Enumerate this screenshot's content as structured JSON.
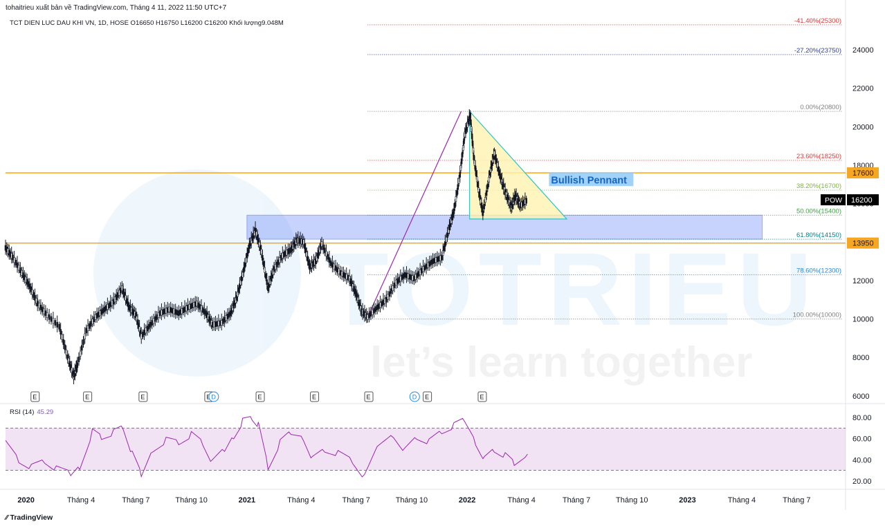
{
  "publisher_line": "tohaitrieu xuất bản về TradingView.com, Tháng 4 11, 2022 11:50 UTC+7",
  "symbol_line": "TCT DIEN LUC DAU KHI VN, 1D, HOSE  O16650  H16750  L16200  C16200  Khối lượng9.048M",
  "brand": "TradingView",
  "watermark": {
    "big": "TOTRIEU",
    "tagline": "let’s learn together"
  },
  "annotation": "Bullish Pennant",
  "rsi": {
    "label": "RSI (14)",
    "value": "45.29",
    "ticks": [
      "80.00",
      "60.00",
      "40.00",
      "20.00"
    ]
  },
  "colors": {
    "up": "#26a69a",
    "line": "#131722",
    "accent_orange": "#f5a623",
    "zone": "#4a6cf7",
    "pennant_fill": "#fff3b0",
    "pennant_edge": "#2ec4c4",
    "rsi_line": "#9c27b0",
    "rsi_band": "#e1bee7"
  },
  "chart_data": {
    "type": "candlestick",
    "symbol": "POW",
    "last_price": "16200",
    "y_ticks": [
      "24000",
      "22000",
      "20000",
      "18000",
      "16000",
      "14000",
      "12000",
      "10000",
      "8000",
      "6000"
    ],
    "ylim": [
      5600,
      25800
    ],
    "x_ticks": [
      "2020",
      "Tháng 4",
      "Tháng 7",
      "Tháng 10",
      "2021",
      "Tháng 4",
      "Tháng 7",
      "Tháng 10",
      "2022",
      "Tháng 4",
      "Tháng 7",
      "Tháng 10",
      "2023",
      "Tháng 4",
      "Tháng 7"
    ],
    "x_tick_dates": [
      "2020-01-01",
      "2020-04-01",
      "2020-07-01",
      "2020-10-01",
      "2021-01-01",
      "2021-04-01",
      "2021-07-01",
      "2021-10-01",
      "2022-01-01",
      "2022-04-01",
      "2022-07-01",
      "2022-10-01",
      "2023-01-01",
      "2023-04-01",
      "2023-07-01"
    ],
    "xlim": [
      "2019-11-28",
      "2023-09-20"
    ],
    "price_series": [
      [
        "2019-11-28",
        13700
      ],
      [
        "2019-12-10",
        13200
      ],
      [
        "2019-12-25",
        12400
      ],
      [
        "2020-01-07",
        11700
      ],
      [
        "2020-01-20",
        10800
      ],
      [
        "2020-02-05",
        10200
      ],
      [
        "2020-02-25",
        9600
      ],
      [
        "2020-03-10",
        8000
      ],
      [
        "2020-03-20",
        7000
      ],
      [
        "2020-03-26",
        7600
      ],
      [
        "2020-04-10",
        9400
      ],
      [
        "2020-04-25",
        10100
      ],
      [
        "2020-05-10",
        10500
      ],
      [
        "2020-05-25",
        10900
      ],
      [
        "2020-06-08",
        11600
      ],
      [
        "2020-06-20",
        10600
      ],
      [
        "2020-07-01",
        10200
      ],
      [
        "2020-07-10",
        9100
      ],
      [
        "2020-07-25",
        9700
      ],
      [
        "2020-08-10",
        10300
      ],
      [
        "2020-08-25",
        10500
      ],
      [
        "2020-09-10",
        10300
      ],
      [
        "2020-09-25",
        10600
      ],
      [
        "2020-10-10",
        10800
      ],
      [
        "2020-10-25",
        10300
      ],
      [
        "2020-11-05",
        9700
      ],
      [
        "2020-11-20",
        9800
      ],
      [
        "2020-12-05",
        10300
      ],
      [
        "2020-12-15",
        11100
      ],
      [
        "2020-12-25",
        12300
      ],
      [
        "2021-01-05",
        13800
      ],
      [
        "2021-01-15",
        14600
      ],
      [
        "2021-01-25",
        13500
      ],
      [
        "2021-02-05",
        11600
      ],
      [
        "2021-02-15",
        12600
      ],
      [
        "2021-03-01",
        13300
      ],
      [
        "2021-03-15",
        13600
      ],
      [
        "2021-03-25",
        14100
      ],
      [
        "2021-04-05",
        14000
      ],
      [
        "2021-04-15",
        12700
      ],
      [
        "2021-04-25",
        13000
      ],
      [
        "2021-05-05",
        13900
      ],
      [
        "2021-05-20",
        12900
      ],
      [
        "2021-06-05",
        12400
      ],
      [
        "2021-06-20",
        12100
      ],
      [
        "2021-07-01",
        11300
      ],
      [
        "2021-07-10",
        10400
      ],
      [
        "2021-07-20",
        10100
      ],
      [
        "2021-08-05",
        10600
      ],
      [
        "2021-08-20",
        11000
      ],
      [
        "2021-09-05",
        11900
      ],
      [
        "2021-09-20",
        12300
      ],
      [
        "2021-10-05",
        12100
      ],
      [
        "2021-10-20",
        12600
      ],
      [
        "2021-11-05",
        13000
      ],
      [
        "2021-11-20",
        13200
      ],
      [
        "2021-12-01",
        14600
      ],
      [
        "2021-12-10",
        15600
      ],
      [
        "2021-12-20",
        17500
      ],
      [
        "2021-12-28",
        19600
      ],
      [
        "2022-01-06",
        20600
      ],
      [
        "2022-01-12",
        18400
      ],
      [
        "2022-01-20",
        16700
      ],
      [
        "2022-01-27",
        15500
      ],
      [
        "2022-02-08",
        17600
      ],
      [
        "2022-02-15",
        18600
      ],
      [
        "2022-02-25",
        17400
      ],
      [
        "2022-03-05",
        16600
      ],
      [
        "2022-03-15",
        15800
      ],
      [
        "2022-03-22",
        16400
      ],
      [
        "2022-03-30",
        15900
      ],
      [
        "2022-04-11",
        16200
      ]
    ],
    "fibonacci": [
      {
        "label": "-41.40%(25300)",
        "price": 25300
      },
      {
        "label": "-27.20%(23750)",
        "price": 23750
      },
      {
        "label": "0.00%(20800)",
        "price": 20800
      },
      {
        "label": "23.60%(18250)",
        "price": 18250
      },
      {
        "label": "38.20%(16700)",
        "price": 16700
      },
      {
        "label": "50.00%(15400)",
        "price": 15400
      },
      {
        "label": "61.80%(14150)",
        "price": 14150
      },
      {
        "label": "78.60%(12300)",
        "price": 12300
      },
      {
        "label": "100.00%(10000)",
        "price": 10000
      }
    ],
    "fib_start_date": "2021-07-20",
    "horizontal_levels": [
      {
        "price": 17600,
        "label": "17600"
      },
      {
        "price": 13950,
        "label": "13950"
      }
    ],
    "support_zone": {
      "from_date": "2021-01-01",
      "to_date": "2023-05-05",
      "low": 14150,
      "high": 15400
    },
    "trendline": {
      "start": [
        "2021-07-20",
        10100
      ],
      "end": [
        "2021-12-22",
        20800
      ]
    },
    "pennant": {
      "apex": [
        "2022-01-05",
        20800
      ],
      "right": [
        "2022-06-15",
        15200
      ],
      "bottom_left": [
        "2022-01-05",
        15200
      ]
    },
    "annotation_anchor": [
      "2022-05-20",
      17200
    ],
    "event_markers": [
      {
        "date": "2020-01-16",
        "label": "E"
      },
      {
        "date": "2020-04-12",
        "label": "E"
      },
      {
        "date": "2020-07-13",
        "label": "E"
      },
      {
        "date": "2020-10-30",
        "label": "E"
      },
      {
        "date": "2020-11-07",
        "label": "D"
      },
      {
        "date": "2021-01-23",
        "label": "E"
      },
      {
        "date": "2021-04-23",
        "label": "E"
      },
      {
        "date": "2021-07-22",
        "label": "E"
      },
      {
        "date": "2021-10-06",
        "label": "D"
      },
      {
        "date": "2021-10-27",
        "label": "E"
      },
      {
        "date": "2022-01-26",
        "label": "E"
      }
    ],
    "rsi_series": [
      [
        "2019-11-28",
        57
      ],
      [
        "2019-12-20",
        40
      ],
      [
        "2020-01-10",
        33
      ],
      [
        "2020-02-01",
        38
      ],
      [
        "2020-02-20",
        30
      ],
      [
        "2020-03-15",
        25
      ],
      [
        "2020-03-30",
        35
      ],
      [
        "2020-04-20",
        68
      ],
      [
        "2020-05-05",
        62
      ],
      [
        "2020-05-25",
        66
      ],
      [
        "2020-06-10",
        70
      ],
      [
        "2020-06-25",
        44
      ],
      [
        "2020-07-10",
        24
      ],
      [
        "2020-07-30",
        52
      ],
      [
        "2020-08-20",
        60
      ],
      [
        "2020-09-10",
        57
      ],
      [
        "2020-10-01",
        64
      ],
      [
        "2020-10-20",
        55
      ],
      [
        "2020-11-05",
        36
      ],
      [
        "2020-11-25",
        48
      ],
      [
        "2020-12-10",
        64
      ],
      [
        "2020-12-25",
        78
      ],
      [
        "2021-01-10",
        80
      ],
      [
        "2021-01-20",
        73
      ],
      [
        "2021-02-05",
        32
      ],
      [
        "2021-02-25",
        55
      ],
      [
        "2021-03-15",
        64
      ],
      [
        "2021-04-05",
        62
      ],
      [
        "2021-04-20",
        42
      ],
      [
        "2021-05-10",
        50
      ],
      [
        "2021-06-01",
        46
      ],
      [
        "2021-06-25",
        38
      ],
      [
        "2021-07-15",
        22
      ],
      [
        "2021-08-10",
        55
      ],
      [
        "2021-09-01",
        65
      ],
      [
        "2021-09-20",
        50
      ],
      [
        "2021-10-10",
        62
      ],
      [
        "2021-10-30",
        57
      ],
      [
        "2021-11-20",
        66
      ],
      [
        "2021-12-10",
        71
      ],
      [
        "2021-12-28",
        76
      ],
      [
        "2022-01-15",
        58
      ],
      [
        "2022-01-30",
        42
      ],
      [
        "2022-02-15",
        50
      ],
      [
        "2022-03-05",
        44
      ],
      [
        "2022-03-20",
        36
      ],
      [
        "2022-04-11",
        45.29
      ]
    ],
    "rsi_ylim": [
      12,
      88
    ],
    "rsi_bands": [
      70,
      30
    ]
  }
}
